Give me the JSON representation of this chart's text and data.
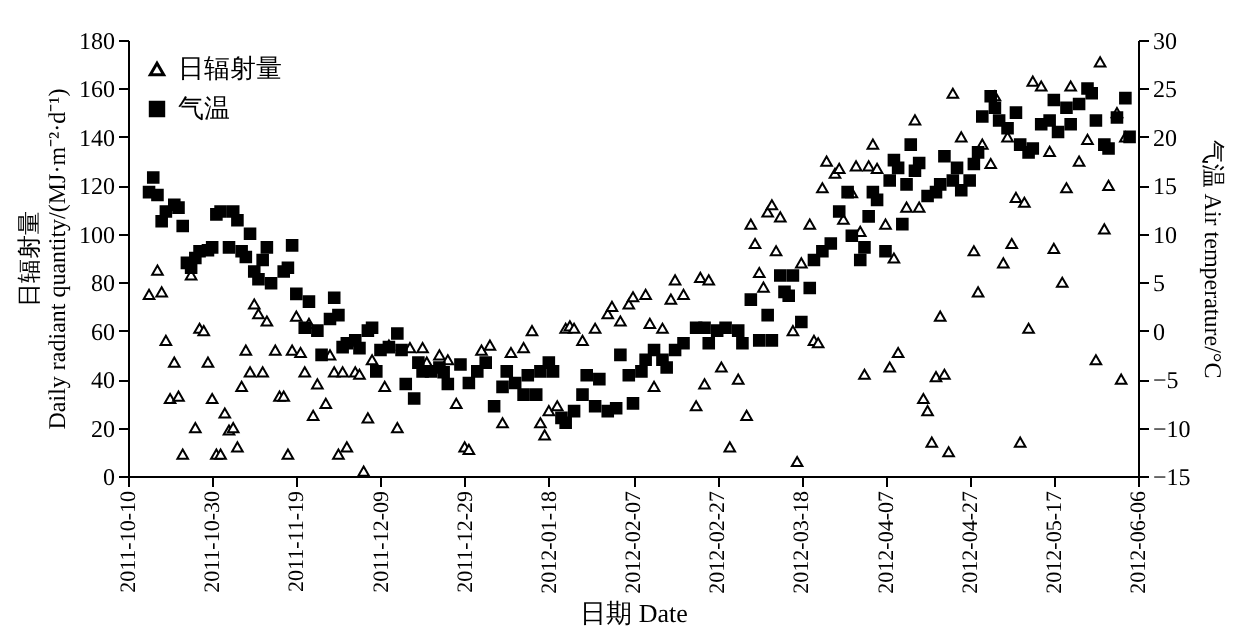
{
  "chart_data": {
    "type": "scatter",
    "xlabel": "日期 Date",
    "ylabel": "日辐射量\nDaily radiant quantity/(MJ·m⁻²·d⁻¹)",
    "y2label": "气温 Air temperature/°C",
    "xlim": [
      "2011-10-10",
      "2012-06-06"
    ],
    "xticks": [
      "2011-10-10",
      "2011-10-30",
      "2011-11-19",
      "2011-12-09",
      "2011-12-29",
      "2012-01-18",
      "2012-02-07",
      "2012-02-27",
      "2012-03-18",
      "2012-04-07",
      "2012-04-27",
      "2012-05-17",
      "2012-06-06"
    ],
    "ylim": [
      0,
      180
    ],
    "yticks": [
      0,
      20,
      40,
      60,
      80,
      100,
      120,
      140,
      160,
      180
    ],
    "y2lim": [
      -15,
      30
    ],
    "y2ticks": [
      -15,
      -10,
      -5,
      0,
      5,
      10,
      15,
      20,
      25,
      30
    ],
    "legend": "top left",
    "series": [
      {
        "name": "日辐射量",
        "color": "#000000",
        "marker": "triangle",
        "axis": "y",
        "x": [
          "2011-10-15",
          "2011-10-17",
          "2011-10-18",
          "2011-10-19",
          "2011-10-20",
          "2011-10-21",
          "2011-10-22",
          "2011-10-23",
          "2011-10-25",
          "2011-10-26",
          "2011-10-27",
          "2011-10-28",
          "2011-10-29",
          "2011-10-30",
          "2011-10-31",
          "2011-11-01",
          "2011-11-02",
          "2011-11-03",
          "2011-11-04",
          "2011-11-05",
          "2011-11-06",
          "2011-11-07",
          "2011-11-08",
          "2011-11-09",
          "2011-11-10",
          "2011-11-11",
          "2011-11-12",
          "2011-11-14",
          "2011-11-15",
          "2011-11-16",
          "2011-11-17",
          "2011-11-18",
          "2011-11-19",
          "2011-11-20",
          "2011-11-21",
          "2011-11-22",
          "2011-11-23",
          "2011-11-24",
          "2011-11-26",
          "2011-11-27",
          "2011-11-28",
          "2011-11-29",
          "2011-11-30",
          "2011-12-01",
          "2011-12-03",
          "2011-12-04",
          "2011-12-05",
          "2011-12-06",
          "2011-12-07",
          "2011-12-10",
          "2011-12-11",
          "2011-12-13",
          "2011-12-16",
          "2011-12-19",
          "2011-12-20",
          "2011-12-23",
          "2011-12-25",
          "2011-12-27",
          "2011-12-29",
          "2011-12-30",
          "2012-01-02",
          "2012-01-04",
          "2012-01-07",
          "2012-01-09",
          "2012-01-12",
          "2012-01-14",
          "2012-01-16",
          "2012-01-17",
          "2012-01-18",
          "2012-01-20",
          "2012-01-22",
          "2012-01-23",
          "2012-01-24",
          "2012-01-26",
          "2012-01-29",
          "2012-02-01",
          "2012-02-02",
          "2012-02-04",
          "2012-02-06",
          "2012-02-07",
          "2012-02-10",
          "2012-02-11",
          "2012-02-12",
          "2012-02-14",
          "2012-02-16",
          "2012-02-17",
          "2012-02-19",
          "2012-02-22",
          "2012-02-23",
          "2012-02-24",
          "2012-02-25",
          "2012-02-28",
          "2012-03-01",
          "2012-03-03",
          "2012-03-05",
          "2012-03-06",
          "2012-03-07",
          "2012-03-08",
          "2012-03-09",
          "2012-03-10",
          "2012-03-11",
          "2012-03-12",
          "2012-03-13",
          "2012-03-16",
          "2012-03-17",
          "2012-03-18",
          "2012-03-20",
          "2012-03-21",
          "2012-03-22",
          "2012-03-23",
          "2012-03-24",
          "2012-03-26",
          "2012-03-27",
          "2012-03-28",
          "2012-03-30",
          "2012-03-31",
          "2012-04-01",
          "2012-04-02",
          "2012-04-03",
          "2012-04-04",
          "2012-04-05",
          "2012-04-07",
          "2012-04-08",
          "2012-04-09",
          "2012-04-10",
          "2012-04-12",
          "2012-04-14",
          "2012-04-15",
          "2012-04-16",
          "2012-04-17",
          "2012-04-18",
          "2012-04-19",
          "2012-04-20",
          "2012-04-21",
          "2012-04-22",
          "2012-04-23",
          "2012-04-25",
          "2012-04-28",
          "2012-04-29",
          "2012-04-30",
          "2012-05-02",
          "2012-05-03",
          "2012-05-05",
          "2012-05-06",
          "2012-05-07",
          "2012-05-08",
          "2012-05-09",
          "2012-05-10",
          "2012-05-11",
          "2012-05-12",
          "2012-05-14",
          "2012-05-16",
          "2012-05-17",
          "2012-05-19",
          "2012-05-20",
          "2012-05-21",
          "2012-05-23",
          "2012-05-25",
          "2012-05-27",
          "2012-05-28",
          "2012-05-29",
          "2012-05-30",
          "2012-06-01",
          "2012-06-02",
          "2012-06-03"
        ],
        "values": [
          75,
          85,
          76,
          56,
          32,
          47,
          33,
          9,
          83,
          20,
          61,
          60,
          47,
          32,
          9,
          9,
          26,
          19,
          20,
          12,
          37,
          52,
          43,
          71,
          67,
          43,
          64,
          52,
          33,
          33,
          9,
          52,
          66,
          51,
          43,
          63,
          25,
          38,
          30,
          50,
          43,
          9,
          43,
          12,
          43,
          42,
          2,
          24,
          48,
          37,
          54,
          20,
          53,
          53,
          47,
          50,
          48,
          30,
          12,
          11,
          52,
          54,
          22,
          51,
          53,
          60,
          22,
          17,
          27,
          29,
          61,
          62,
          61,
          56,
          61,
          67,
          70,
          64,
          71,
          74,
          75,
          63,
          37,
          61,
          73,
          81,
          75,
          29,
          82,
          38,
          81,
          45,
          12,
          40,
          25,
          104,
          96,
          84,
          78,
          109,
          112,
          93,
          107,
          60,
          6,
          88,
          104,
          56,
          55,
          119,
          130,
          125,
          127,
          106,
          117,
          128,
          101,
          42,
          128,
          137,
          127,
          104,
          45,
          90,
          51,
          111,
          147,
          111,
          32,
          27,
          14,
          41,
          66,
          42,
          10,
          158,
          140,
          93,
          76,
          137,
          129,
          157,
          88,
          140,
          96,
          115,
          14,
          113,
          61,
          163,
          161,
          134,
          94,
          80,
          119,
          161,
          130,
          139,
          48,
          171,
          102,
          120,
          150,
          40,
          140
        ]
      },
      {
        "name": "气温",
        "color": "#000000",
        "marker": "square",
        "axis": "y2",
        "x": [
          "2011-10-15",
          "2011-10-16",
          "2011-10-17",
          "2011-10-18",
          "2011-10-19",
          "2011-10-21",
          "2011-10-22",
          "2011-10-23",
          "2011-10-24",
          "2011-10-25",
          "2011-10-26",
          "2011-10-27",
          "2011-10-29",
          "2011-10-30",
          "2011-10-31",
          "2011-11-01",
          "2011-11-03",
          "2011-11-04",
          "2011-11-05",
          "2011-11-06",
          "2011-11-07",
          "2011-11-08",
          "2011-11-09",
          "2011-11-10",
          "2011-11-11",
          "2011-11-12",
          "2011-11-13",
          "2011-11-16",
          "2011-11-17",
          "2011-11-18",
          "2011-11-19",
          "2011-11-21",
          "2011-11-22",
          "2011-11-24",
          "2011-11-25",
          "2011-11-27",
          "2011-11-28",
          "2011-11-29",
          "2011-11-30",
          "2011-12-01",
          "2011-12-03",
          "2011-12-04",
          "2011-12-06",
          "2011-12-07",
          "2011-12-08",
          "2011-12-09",
          "2011-12-11",
          "2011-12-13",
          "2011-12-14",
          "2011-12-15",
          "2011-12-17",
          "2011-12-18",
          "2011-12-19",
          "2011-12-21",
          "2011-12-23",
          "2011-12-24",
          "2011-12-25",
          "2011-12-28",
          "2011-12-30",
          "2012-01-01",
          "2012-01-03",
          "2012-01-05",
          "2012-01-07",
          "2012-01-08",
          "2012-01-10",
          "2012-01-12",
          "2012-01-13",
          "2012-01-15",
          "2012-01-16",
          "2012-01-18",
          "2012-01-19",
          "2012-01-21",
          "2012-01-22",
          "2012-01-24",
          "2012-01-26",
          "2012-01-27",
          "2012-01-29",
          "2012-01-30",
          "2012-02-01",
          "2012-02-03",
          "2012-02-04",
          "2012-02-06",
          "2012-02-07",
          "2012-02-09",
          "2012-02-10",
          "2012-02-12",
          "2012-02-14",
          "2012-02-15",
          "2012-02-17",
          "2012-02-19",
          "2012-02-22",
          "2012-02-24",
          "2012-02-25",
          "2012-02-27",
          "2012-02-29",
          "2012-03-03",
          "2012-03-04",
          "2012-03-06",
          "2012-03-08",
          "2012-03-10",
          "2012-03-11",
          "2012-03-13",
          "2012-03-14",
          "2012-03-15",
          "2012-03-16",
          "2012-03-18",
          "2012-03-20",
          "2012-03-21",
          "2012-03-23",
          "2012-03-25",
          "2012-03-27",
          "2012-03-29",
          "2012-03-30",
          "2012-04-01",
          "2012-04-02",
          "2012-04-03",
          "2012-04-04",
          "2012-04-05",
          "2012-04-07",
          "2012-04-08",
          "2012-04-09",
          "2012-04-10",
          "2012-04-11",
          "2012-04-12",
          "2012-04-13",
          "2012-04-14",
          "2012-04-15",
          "2012-04-17",
          "2012-04-19",
          "2012-04-20",
          "2012-04-21",
          "2012-04-23",
          "2012-04-24",
          "2012-04-25",
          "2012-04-27",
          "2012-04-28",
          "2012-04-29",
          "2012-04-30",
          "2012-05-02",
          "2012-05-03",
          "2012-05-04",
          "2012-05-06",
          "2012-05-08",
          "2012-05-09",
          "2012-05-11",
          "2012-05-12",
          "2012-05-14",
          "2012-05-16",
          "2012-05-17",
          "2012-05-18",
          "2012-05-20",
          "2012-05-21",
          "2012-05-23",
          "2012-05-25",
          "2012-05-26",
          "2012-05-27",
          "2012-05-29",
          "2012-05-30",
          "2012-06-01",
          "2012-06-03",
          "2012-06-04"
        ],
        "values": [
          14.3,
          15.8,
          14.0,
          11.3,
          12.3,
          13.0,
          12.7,
          10.8,
          7.0,
          6.5,
          7.5,
          8.2,
          8.3,
          8.6,
          12.0,
          12.3,
          8.6,
          12.3,
          11.4,
          8.2,
          7.6,
          10.0,
          6.1,
          5.3,
          7.3,
          8.6,
          4.9,
          6.1,
          6.5,
          8.8,
          3.8,
          0.3,
          3.0,
          0.0,
          -2.5,
          1.2,
          3.4,
          1.6,
          -1.7,
          -1.3,
          -1.0,
          -1.8,
          0.0,
          0.3,
          -4.2,
          -2.0,
          -1.7,
          -0.3,
          -2.0,
          -5.5,
          -7.0,
          -3.3,
          -4.2,
          -4.2,
          -3.8,
          -4.3,
          -5.5,
          -3.5,
          -5.4,
          -4.2,
          -3.3,
          -7.8,
          -5.8,
          -4.2,
          -5.4,
          -6.6,
          -4.6,
          -6.6,
          -4.2,
          -3.3,
          -4.2,
          -9.0,
          -9.5,
          -8.3,
          -6.6,
          -4.6,
          -7.8,
          -5.0,
          -8.3,
          -8.0,
          -2.5,
          -4.6,
          -7.5,
          -4.2,
          -3.0,
          -2.0,
          -3.0,
          -3.8,
          -2.0,
          -1.3,
          0.3,
          0.3,
          -1.3,
          0.0,
          0.3,
          0.0,
          -1.3,
          3.2,
          -1.0,
          1.6,
          -1.0,
          5.7,
          4.0,
          3.6,
          5.7,
          0.9,
          4.4,
          7.3,
          8.2,
          9.0,
          12.3,
          14.3,
          9.8,
          7.3,
          8.6,
          11.8,
          14.3,
          13.5,
          8.2,
          15.5,
          17.6,
          16.8,
          11.0,
          15.1,
          19.2,
          16.5,
          17.3,
          13.9,
          14.3,
          15.1,
          18.0,
          15.5,
          16.8,
          14.5,
          15.5,
          17.2,
          18.4,
          22.1,
          24.2,
          23.0,
          21.7,
          20.9,
          22.5,
          19.2,
          18.4,
          18.8,
          21.3,
          21.7,
          23.8,
          20.5,
          23.0,
          21.3,
          23.4,
          25.0,
          24.5,
          21.7,
          19.2,
          18.8,
          22.0,
          24.0,
          20.0
        ]
      }
    ]
  }
}
